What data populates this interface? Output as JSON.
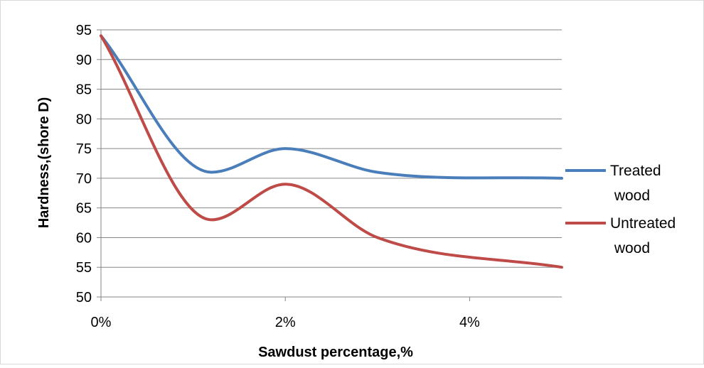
{
  "chart_data": {
    "type": "line",
    "title": "",
    "xlabel": "Sawdust percentage,%",
    "ylabel": "Hardness,(shore D)",
    "x_ticks": [
      "0%",
      "2%",
      "4%"
    ],
    "x": [
      0,
      1.2,
      2,
      3,
      5
    ],
    "xlim": [
      0,
      5
    ],
    "ylim": [
      50,
      95
    ],
    "y_ticks": [
      "50",
      "55",
      "60",
      "65",
      "70",
      "75",
      "80",
      "85",
      "90",
      "95"
    ],
    "grid": "horizontal",
    "legend_position": "right",
    "series": [
      {
        "name": "Treated wood",
        "color": "#4a7ebb",
        "values": [
          94,
          71,
          75,
          71,
          70
        ]
      },
      {
        "name": "Untreated wood",
        "color": "#be4b48",
        "values": [
          94,
          63,
          69,
          60,
          55
        ]
      }
    ]
  }
}
